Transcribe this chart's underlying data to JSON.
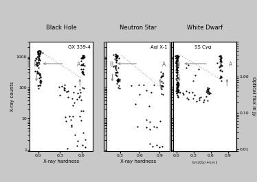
{
  "title_left": "Black Hole",
  "title_mid": "Neutron Star",
  "title_right": "White Dwarf",
  "subtitle_left": "GX 339-4",
  "subtitle_mid": "Aql X-1",
  "subtitle_right": "SS Cyg",
  "xlabel_left": "X-ray hardness",
  "xlabel_mid": "X-ray hardness",
  "xlabel_right": "L$_{PL}$/(L$_D$+L$_{PL}$)",
  "ylabel_left": "X-ray counts",
  "ylabel_right": "Optical flux in Jy",
  "bg_color": "#c8c8c8",
  "panel_bg": "#ffffff",
  "arrow_color": "#888888",
  "dot_color": "#000000",
  "dot_size": 2.5,
  "dashed_color": "#aaaaaa",
  "bh_xlim": [
    -0.12,
    0.75
  ],
  "bh_xticks": [
    0.0,
    0.3,
    0.6
  ],
  "ns_xlim": [
    0.1,
    1.05
  ],
  "ns_xticks": [
    0.3,
    0.6,
    0.9
  ],
  "wd_xlim": [
    -0.05,
    1.05
  ],
  "wd_xticks": [
    0.0,
    0.3,
    0.6,
    0.9
  ],
  "ylim": [
    0.9,
    3000
  ],
  "yticks": [
    1,
    10,
    100,
    1000
  ],
  "right_ylim": [
    0.009,
    9.0
  ],
  "right_yticks": [
    0.01,
    0.1,
    1
  ]
}
